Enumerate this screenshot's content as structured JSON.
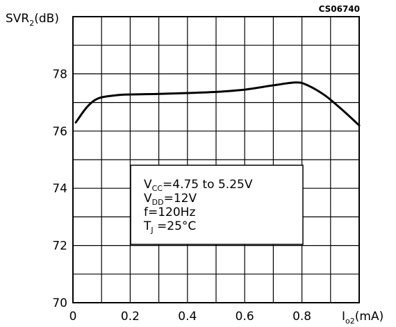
{
  "chart_data": {
    "type": "line",
    "code_label": "CS06740",
    "ylabel": {
      "main": "SVR",
      "sub": "2",
      "unit": "(dB)"
    },
    "xlabel": {
      "main": "I",
      "sub": "o2",
      "unit": "(mA)"
    },
    "xlim": [
      0,
      1.0
    ],
    "ylim": [
      70,
      80
    ],
    "x_grid_step": 0.1,
    "y_grid_step": 1,
    "x_tick_values": [
      0,
      0.2,
      0.4,
      0.6,
      0.8
    ],
    "x_tick_labels": [
      "0",
      "0.2",
      "0.4",
      "0.6",
      "0.8"
    ],
    "y_tick_values": [
      70,
      72,
      74,
      76,
      78
    ],
    "y_tick_labels": [
      "70",
      "72",
      "74",
      "76",
      "78"
    ],
    "grid": true,
    "conditions": [
      {
        "main": "V",
        "sub": "CC",
        "rest": "=4.75  to  5.25V"
      },
      {
        "main": "V",
        "sub": "DD",
        "rest": "=12V"
      },
      {
        "main": "f=120Hz",
        "sub": "",
        "rest": ""
      },
      {
        "main": "T",
        "sub": "J",
        "rest": " =25°C"
      }
    ],
    "series": [
      {
        "x": [
          0.01,
          0.05,
          0.09,
          0.15,
          0.2,
          0.3,
          0.4,
          0.5,
          0.6,
          0.7,
          0.78,
          0.82,
          0.88,
          0.94,
          1.0
        ],
        "y": [
          76.3,
          76.85,
          77.15,
          77.25,
          77.28,
          77.3,
          77.33,
          77.37,
          77.45,
          77.6,
          77.7,
          77.6,
          77.25,
          76.75,
          76.2
        ]
      }
    ]
  }
}
